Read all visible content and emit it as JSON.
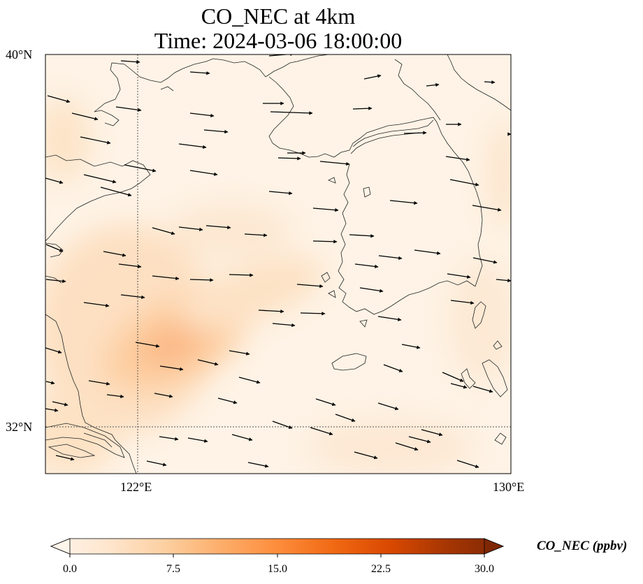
{
  "title_line1": "CO_NEC at 4km",
  "title_line2": "Time: 2024-03-06 18:00:00",
  "axes": {
    "lat_labels": [
      "40°N",
      "32°N"
    ],
    "lon_labels": [
      "122°E",
      "130°E"
    ]
  },
  "colorbar": {
    "label": "CO_NEC (ppbv)",
    "min": 0,
    "max": 30,
    "ticks": [
      "0.0",
      "7.5",
      "15.0",
      "22.5",
      "30.0"
    ],
    "colormap": [
      "#fff5eb",
      "#fee6ce",
      "#fdd0a2",
      "#fdae6b",
      "#fd8d3c",
      "#f16913",
      "#d94801",
      "#a63603",
      "#7f2704"
    ],
    "extend": "both"
  },
  "map_data": {
    "lon_range": [
      120,
      130
    ],
    "lat_range": [
      31,
      40
    ],
    "gridlines": {
      "lon": 122,
      "lat": 32
    },
    "plume_peak_ppbv": 10,
    "wind_vectors": "westerly, mostly eastward"
  }
}
